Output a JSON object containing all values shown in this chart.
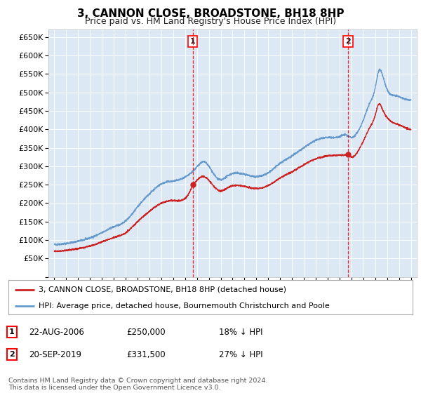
{
  "title": "3, CANNON CLOSE, BROADSTONE, BH18 8HP",
  "subtitle": "Price paid vs. HM Land Registry's House Price Index (HPI)",
  "background_color": "#ffffff",
  "plot_bg_color": "#dce9f5",
  "grid_color": "#ffffff",
  "ylim": [
    0,
    670000
  ],
  "yticks": [
    0,
    50000,
    100000,
    150000,
    200000,
    250000,
    300000,
    350000,
    400000,
    450000,
    500000,
    550000,
    600000,
    650000
  ],
  "xlim_start": 1994.5,
  "xlim_end": 2025.5,
  "sale1_x": 2006.644,
  "sale1_y": 250000,
  "sale2_x": 2019.722,
  "sale2_y": 331500,
  "hpi_color": "#6699cc",
  "price_color": "#cc2222",
  "legend_line1": "3, CANNON CLOSE, BROADSTONE, BH18 8HP (detached house)",
  "legend_line2": "HPI: Average price, detached house, Bournemouth Christchurch and Poole",
  "annotation1_date": "22-AUG-2006",
  "annotation1_price": "£250,000",
  "annotation1_hpi": "18% ↓ HPI",
  "annotation2_date": "20-SEP-2019",
  "annotation2_price": "£331,500",
  "annotation2_hpi": "27% ↓ HPI",
  "footer": "Contains HM Land Registry data © Crown copyright and database right 2024.\nThis data is licensed under the Open Government Licence v3.0.",
  "hpi_anchors": [
    [
      1995.0,
      88000
    ],
    [
      1996.0,
      91000
    ],
    [
      1997.0,
      97000
    ],
    [
      1998.0,
      106000
    ],
    [
      1999.0,
      120000
    ],
    [
      2000.0,
      136000
    ],
    [
      2001.0,
      152000
    ],
    [
      2002.0,
      190000
    ],
    [
      2003.0,
      225000
    ],
    [
      2004.0,
      252000
    ],
    [
      2005.0,
      260000
    ],
    [
      2006.0,
      270000
    ],
    [
      2007.0,
      298000
    ],
    [
      2007.5,
      312000
    ],
    [
      2008.0,
      300000
    ],
    [
      2008.5,
      275000
    ],
    [
      2009.0,
      263000
    ],
    [
      2009.5,
      272000
    ],
    [
      2010.0,
      280000
    ],
    [
      2011.0,
      278000
    ],
    [
      2012.0,
      272000
    ],
    [
      2013.0,
      282000
    ],
    [
      2014.0,
      308000
    ],
    [
      2015.0,
      328000
    ],
    [
      2016.0,
      350000
    ],
    [
      2017.0,
      370000
    ],
    [
      2018.0,
      378000
    ],
    [
      2019.0,
      380000
    ],
    [
      2019.5,
      385000
    ],
    [
      2020.0,
      378000
    ],
    [
      2020.5,
      392000
    ],
    [
      2021.0,
      425000
    ],
    [
      2021.5,
      468000
    ],
    [
      2022.0,
      512000
    ],
    [
      2022.3,
      558000
    ],
    [
      2022.6,
      548000
    ],
    [
      2023.0,
      508000
    ],
    [
      2023.5,
      492000
    ],
    [
      2024.0,
      488000
    ],
    [
      2024.5,
      482000
    ],
    [
      2025.0,
      480000
    ]
  ],
  "price_pre_anchors": [
    [
      1995.0,
      70000
    ],
    [
      1996.0,
      72000
    ],
    [
      1997.0,
      77000
    ],
    [
      1998.0,
      84000
    ],
    [
      1999.0,
      95000
    ],
    [
      2000.0,
      107000
    ],
    [
      2001.0,
      120000
    ],
    [
      2002.0,
      150000
    ],
    [
      2003.0,
      178000
    ],
    [
      2004.0,
      200000
    ],
    [
      2005.0,
      207000
    ],
    [
      2006.0,
      213000
    ],
    [
      2006.644,
      250000
    ]
  ],
  "price_mid_anchors": [
    [
      2006.644,
      250000
    ],
    [
      2007.0,
      262000
    ],
    [
      2007.5,
      272000
    ],
    [
      2008.0,
      262000
    ],
    [
      2008.5,
      243000
    ],
    [
      2009.0,
      233000
    ],
    [
      2009.5,
      240000
    ],
    [
      2010.0,
      247000
    ],
    [
      2011.0,
      245000
    ],
    [
      2012.0,
      240000
    ],
    [
      2013.0,
      248000
    ],
    [
      2014.0,
      268000
    ],
    [
      2015.0,
      285000
    ],
    [
      2016.0,
      304000
    ],
    [
      2017.0,
      320000
    ],
    [
      2018.0,
      328000
    ],
    [
      2019.0,
      330000
    ],
    [
      2019.722,
      331500
    ]
  ],
  "price_post_anchors": [
    [
      2019.722,
      331500
    ],
    [
      2020.0,
      325000
    ],
    [
      2020.5,
      338000
    ],
    [
      2021.0,
      368000
    ],
    [
      2021.5,
      402000
    ],
    [
      2022.0,
      438000
    ],
    [
      2022.3,
      468000
    ],
    [
      2022.6,
      455000
    ],
    [
      2023.0,
      432000
    ],
    [
      2023.5,
      418000
    ],
    [
      2024.0,
      412000
    ],
    [
      2024.5,
      405000
    ],
    [
      2025.0,
      400000
    ]
  ]
}
